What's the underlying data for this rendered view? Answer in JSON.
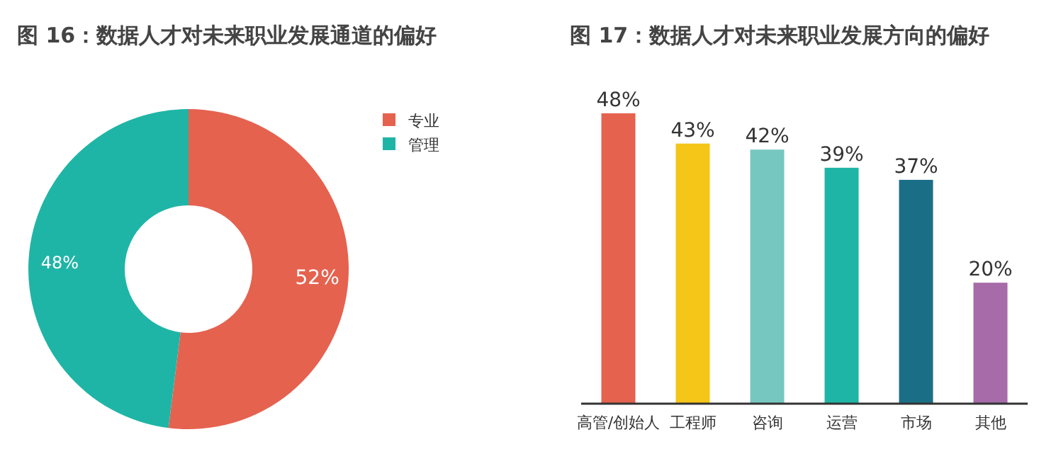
{
  "chart_data": [
    {
      "type": "donut",
      "title": "图 16：数据人才对未来职业发展通道的偏好",
      "categories": [
        "专业",
        "管理"
      ],
      "values": [
        52,
        48
      ],
      "colors": [
        "#e5624f",
        "#1fb5a6"
      ],
      "value_labels": [
        "52%",
        "48%"
      ],
      "legend": "top right"
    },
    {
      "type": "bar",
      "title": "图 17：数据人才对未来职业发展方向的偏好",
      "categories": [
        "高管/创始人",
        "工程师",
        "咨询",
        "运营",
        "市场",
        "其他"
      ],
      "values": [
        48,
        43,
        42,
        39,
        37,
        20
      ],
      "colors": [
        "#e5624f",
        "#f5c518",
        "#76c7c0",
        "#1fb5a6",
        "#1a6f86",
        "#a66ba8"
      ],
      "value_labels": [
        "48%",
        "43%",
        "42%",
        "39%",
        "37%",
        "20%"
      ]
    }
  ]
}
